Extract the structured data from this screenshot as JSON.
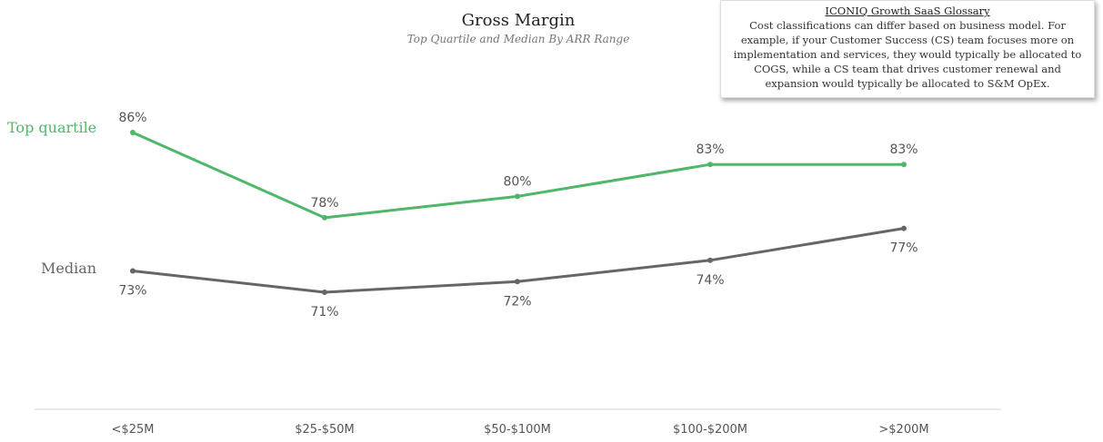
{
  "chart_data": {
    "type": "line",
    "title": "Gross Margin",
    "subtitle": "Top Quartile and Median By ARR Range",
    "categories": [
      "<$25M",
      "$25-$50M",
      "$50-$100M",
      "$100-$200M",
      ">$200M"
    ],
    "series": [
      {
        "name": "Top quartile",
        "values": [
          86,
          78,
          80,
          83,
          83
        ],
        "labels": [
          "86%",
          "78%",
          "80%",
          "83%",
          "83%"
        ],
        "color": "#4fb76a"
      },
      {
        "name": "Median",
        "values": [
          73,
          71,
          72,
          74,
          77
        ],
        "labels": [
          "73%",
          "71%",
          "72%",
          "74%",
          "77%"
        ],
        "color": "#666666"
      }
    ],
    "ylim": [
      65,
      90
    ],
    "grid": false
  },
  "glossary": {
    "title": "ICONIQ Growth SaaS Glossary",
    "text": "Cost classifications can differ based on business model. For example, if your Customer Success (CS) team focuses more on implementation and services, they would typically be allocated to COGS, while a CS team that drives customer renewal and expansion would typically be allocated to S&M OpEx."
  }
}
